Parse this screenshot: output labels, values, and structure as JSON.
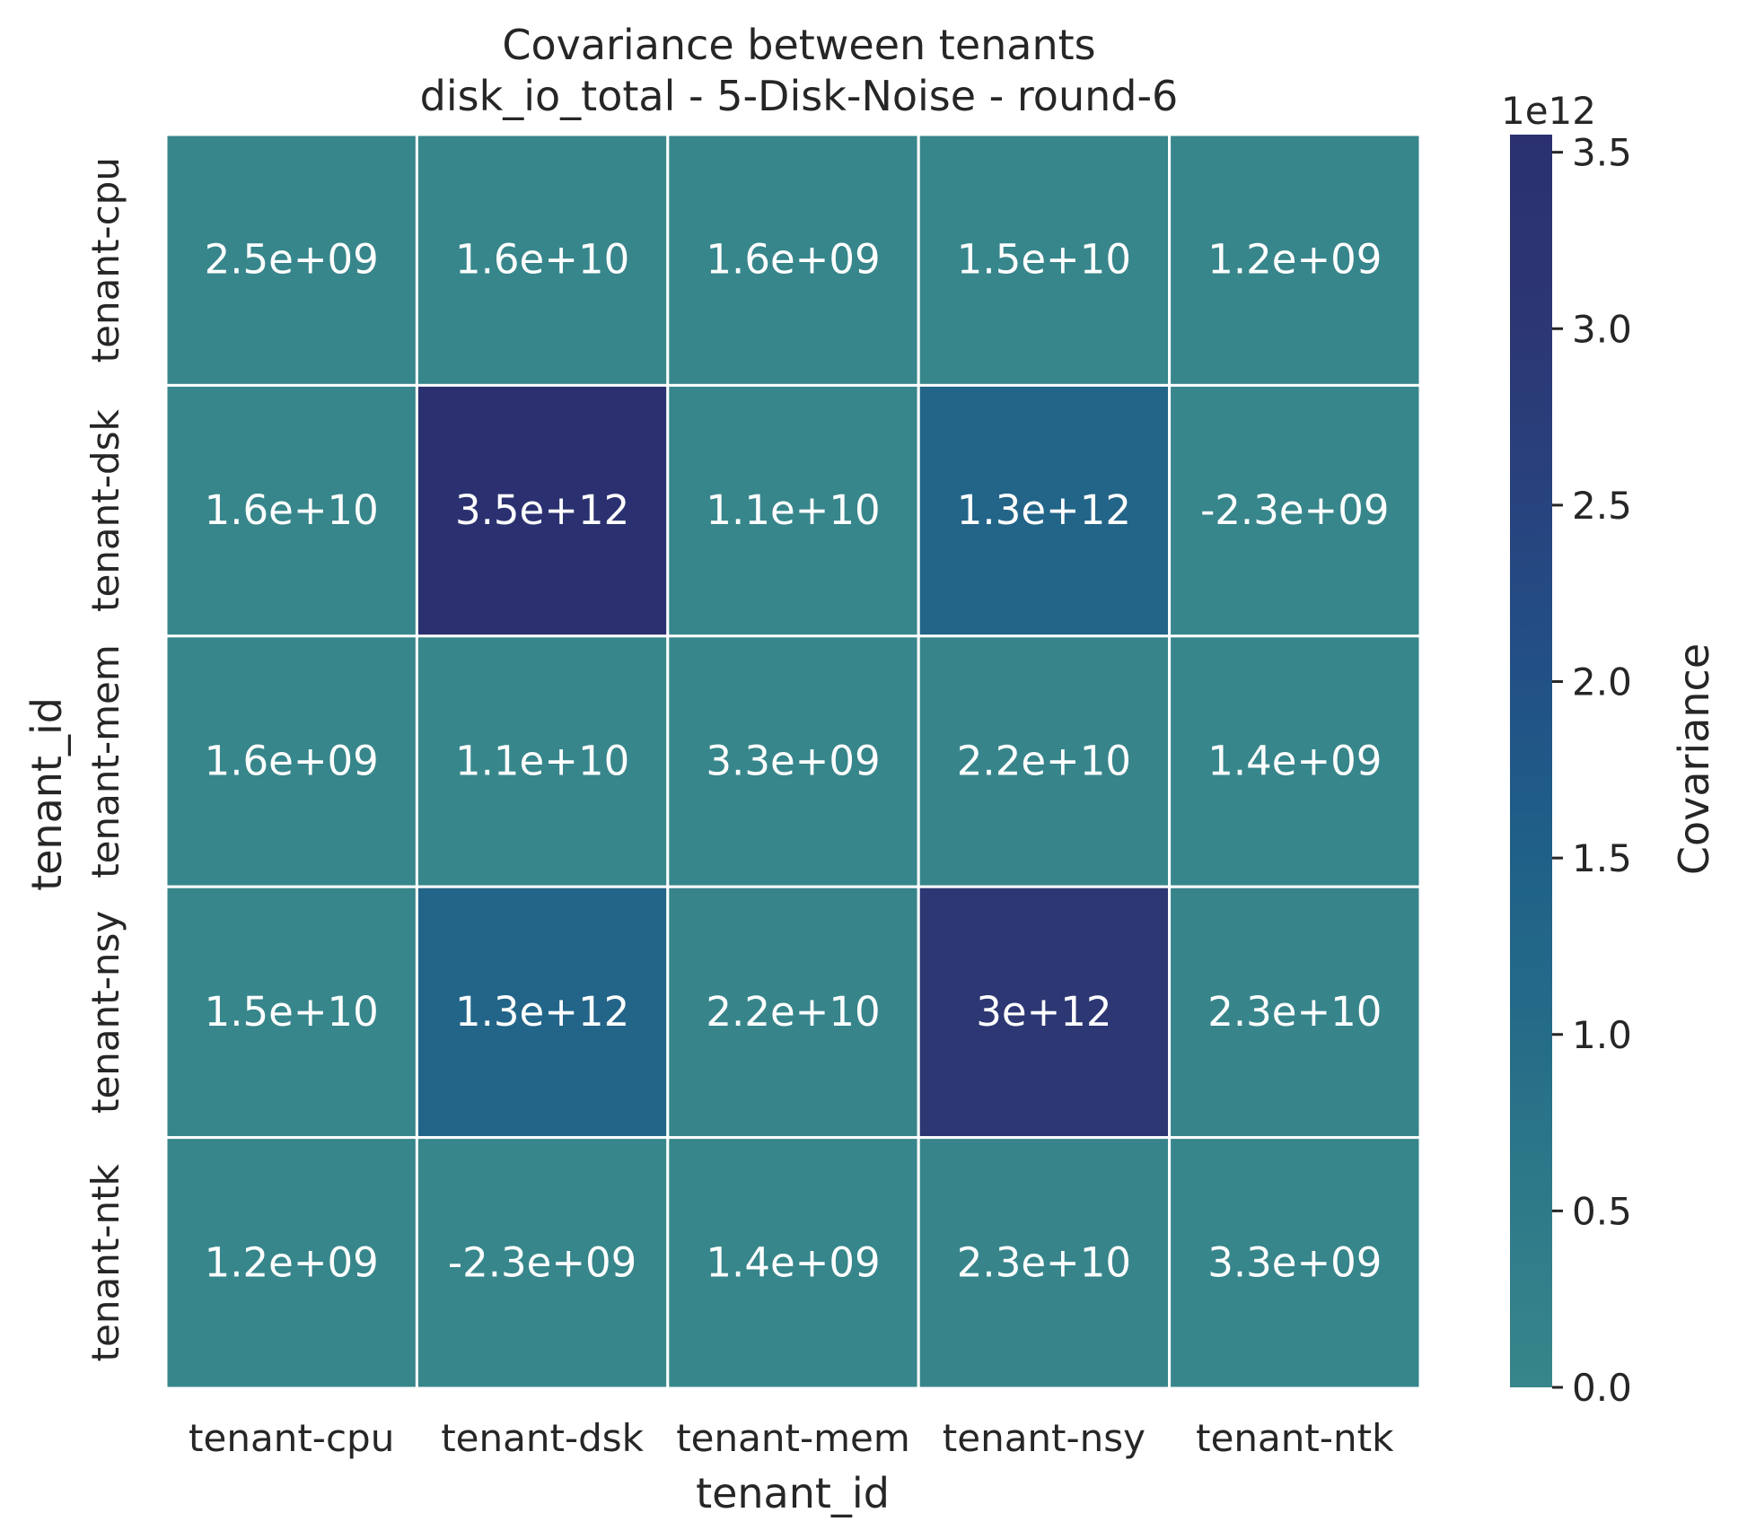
{
  "chart_data": {
    "type": "heatmap",
    "title": "Covariance between tenants",
    "subtitle": "disk_io_total - 5-Disk-Noise - round-6",
    "xlabel": "tenant_id",
    "ylabel": "tenant_id",
    "x_categories": [
      "tenant-cpu",
      "tenant-dsk",
      "tenant-mem",
      "tenant-nsy",
      "tenant-ntk"
    ],
    "y_categories": [
      "tenant-cpu",
      "tenant-dsk",
      "tenant-mem",
      "tenant-nsy",
      "tenant-ntk"
    ],
    "values": [
      [
        2500000000.0,
        16000000000.0,
        1600000000.0,
        15000000000.0,
        1200000000.0
      ],
      [
        16000000000.0,
        3500000000000.0,
        11000000000.0,
        1300000000000.0,
        -2300000000.0
      ],
      [
        1600000000.0,
        11000000000.0,
        3300000000.0,
        22000000000.0,
        1400000000.0
      ],
      [
        15000000000.0,
        1300000000000.0,
        22000000000.0,
        3000000000000.0,
        23000000000.0
      ],
      [
        1200000000.0,
        -2300000000.0,
        1400000000.0,
        23000000000.0,
        3300000000.0
      ]
    ],
    "value_labels": [
      [
        "2.5e+09",
        "1.6e+10",
        "1.6e+09",
        "1.5e+10",
        "1.2e+09"
      ],
      [
        "1.6e+10",
        "3.5e+12",
        "1.1e+10",
        "1.3e+12",
        "-2.3e+09"
      ],
      [
        "1.6e+09",
        "1.1e+10",
        "3.3e+09",
        "2.2e+10",
        "1.4e+09"
      ],
      [
        "1.5e+10",
        "1.3e+12",
        "2.2e+10",
        "3e+12",
        "2.3e+10"
      ],
      [
        "1.2e+09",
        "-2.3e+09",
        "1.4e+09",
        "2.3e+10",
        "3.3e+09"
      ]
    ],
    "colorbar": {
      "label": "Covariance",
      "offset_text": "1e12",
      "range": [
        0,
        3550000000000.0
      ],
      "ticks": [
        0.0,
        0.5,
        1.0,
        1.5,
        2.0,
        2.5,
        3.0,
        3.5
      ],
      "tick_labels": [
        "0.0",
        "0.5",
        "1.0",
        "1.5",
        "2.0",
        "2.5",
        "3.0",
        "3.5"
      ],
      "colors": [
        "#37868b",
        "#2f7a89",
        "#256c88",
        "#1f6088",
        "#225086",
        "#28427e",
        "#2c3672",
        "#2b3170"
      ]
    },
    "grid": false,
    "legend": "colorbar-right"
  }
}
